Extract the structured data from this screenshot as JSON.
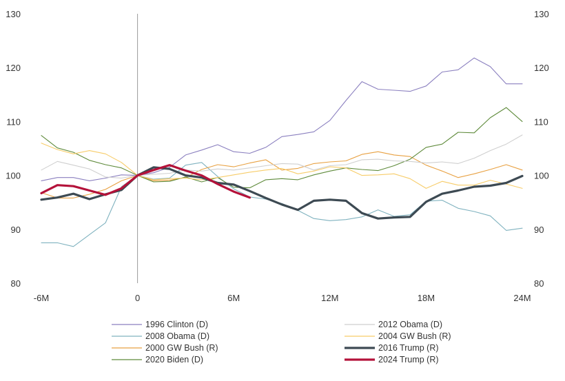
{
  "chart_data": {
    "type": "line",
    "title": "",
    "xlabel": "",
    "ylabel": "",
    "x_ticks": [
      {
        "value": -6,
        "label": "-6M"
      },
      {
        "value": 0,
        "label": "0"
      },
      {
        "value": 6,
        "label": "6M"
      },
      {
        "value": 12,
        "label": "12M"
      },
      {
        "value": 18,
        "label": "18M"
      },
      {
        "value": 24,
        "label": "24M"
      }
    ],
    "y_ticks": [
      80,
      90,
      100,
      110,
      120,
      130
    ],
    "xlim": [
      -6,
      24
    ],
    "ylim": [
      80,
      130
    ],
    "reference_line_x": 0,
    "legend_position": "bottom",
    "series": [
      {
        "name": "1996 Clinton (D)",
        "color": "#8a7fbf",
        "emphasis": false,
        "x": [
          -6,
          -5,
          -4,
          -3,
          -2,
          -1,
          0,
          1,
          2,
          3,
          4,
          5,
          6,
          7,
          8,
          9,
          10,
          11,
          12,
          13,
          14,
          15,
          16,
          17,
          18,
          19,
          20,
          21,
          22,
          23,
          24
        ],
        "y": [
          99,
          99.6,
          99.6,
          99,
          99.5,
          100.1,
          100,
          100.5,
          101.5,
          103.8,
          104.7,
          105.7,
          104.4,
          104.1,
          105.2,
          107.2,
          107.6,
          108.1,
          110.2,
          113.9,
          117.4,
          116.0,
          115.8,
          115.6,
          116.6,
          119.2,
          119.6,
          121.8,
          120.2,
          117,
          117
        ]
      },
      {
        "name": "2008 Obama (D)",
        "color": "#7fb2bf",
        "emphasis": false,
        "x": [
          -6,
          -5,
          -4,
          -3,
          -2,
          -1,
          0,
          1,
          2,
          3,
          4,
          5,
          6,
          7,
          8,
          9,
          10,
          11,
          12,
          13,
          14,
          15,
          16,
          17,
          18,
          19,
          20,
          21,
          22,
          23,
          24
        ],
        "y": [
          87.5,
          87.5,
          86.8,
          89.0,
          91.2,
          97.9,
          100,
          99.3,
          99.5,
          101.9,
          102.4,
          99.8,
          97.5,
          96.0,
          95.6,
          94.8,
          93.5,
          92.0,
          91.6,
          91.8,
          92.3,
          93.6,
          92.4,
          92.7,
          95.2,
          95.4,
          93.9,
          93.3,
          92.5,
          89.8,
          90.2
        ]
      },
      {
        "name": "2000 GW Bush (R)",
        "color": "#e8a040",
        "emphasis": false,
        "x": [
          -6,
          -5,
          -4,
          -3,
          -2,
          -1,
          0,
          1,
          2,
          3,
          4,
          5,
          6,
          7,
          8,
          9,
          10,
          11,
          12,
          13,
          14,
          15,
          16,
          17,
          18,
          19,
          20,
          21,
          22,
          23,
          24
        ],
        "y": [
          96.8,
          95.8,
          95.8,
          96.5,
          97.4,
          99.0,
          100,
          99.0,
          99.1,
          99.6,
          101.1,
          102.0,
          101.6,
          102.3,
          102.9,
          101.0,
          101.3,
          102.2,
          102.5,
          102.7,
          103.9,
          104.4,
          103.8,
          103.5,
          101.9,
          100.8,
          99.6,
          100.3,
          101.1,
          102.0,
          101.0
        ]
      },
      {
        "name": "2020 Biden (D)",
        "color": "#5e8a3a",
        "emphasis": false,
        "x": [
          -6,
          -5,
          -4,
          -3,
          -2,
          -1,
          0,
          1,
          2,
          3,
          4,
          5,
          6,
          7,
          8,
          9,
          10,
          11,
          12,
          13,
          14,
          15,
          16,
          17,
          18,
          19,
          20,
          21,
          22,
          23,
          24
        ],
        "y": [
          107.4,
          105.1,
          104.3,
          102.8,
          102.0,
          101.4,
          100,
          98.8,
          98.9,
          99.7,
          98.8,
          99.6,
          97.8,
          97.7,
          99.2,
          99.4,
          99.2,
          100.1,
          100.8,
          101.4,
          101.1,
          100.9,
          101.8,
          103.0,
          105.2,
          105.8,
          108.0,
          107.9,
          110.7,
          112.6,
          110.0
        ]
      },
      {
        "name": "2012 Obama (D)",
        "color": "#cfcfcf",
        "emphasis": false,
        "x": [
          -6,
          -5,
          -4,
          -3,
          -2,
          -1,
          0,
          1,
          2,
          3,
          4,
          5,
          6,
          7,
          8,
          9,
          10,
          11,
          12,
          13,
          14,
          15,
          16,
          17,
          18,
          19,
          20,
          21,
          22,
          23,
          24
        ],
        "y": [
          101.0,
          102.6,
          101.9,
          101.2,
          99.7,
          99.5,
          100,
          100.2,
          100.4,
          101.0,
          100.8,
          101.2,
          101.0,
          101.4,
          101.8,
          102.2,
          102.1,
          101.0,
          101.8,
          102.0,
          102.9,
          103.0,
          102.7,
          102.6,
          102.3,
          102.5,
          102.2,
          103.2,
          104.6,
          105.8,
          107.5
        ]
      },
      {
        "name": "2004 GW Bush (R)",
        "color": "#f7cc68",
        "emphasis": false,
        "x": [
          -6,
          -5,
          -4,
          -3,
          -2,
          -1,
          0,
          1,
          2,
          3,
          4,
          5,
          6,
          7,
          8,
          9,
          10,
          11,
          12,
          13,
          14,
          15,
          16,
          17,
          18,
          19,
          20,
          21,
          22,
          23,
          24
        ],
        "y": [
          106.0,
          104.8,
          104.0,
          104.6,
          104.0,
          102.4,
          100,
          99.2,
          99.4,
          99.5,
          99.2,
          99.6,
          100.1,
          100.6,
          101.0,
          101.3,
          100.3,
          100.8,
          101.6,
          101.4,
          100.0,
          100.1,
          100.3,
          99.4,
          97.6,
          98.9,
          98.2,
          98.2,
          99.1,
          98.4,
          97.6
        ]
      },
      {
        "name": "2016 Trump (R)",
        "color": "#3d4a53",
        "emphasis": true,
        "x": [
          -6,
          -5,
          -4,
          -3,
          -2,
          -1,
          0,
          1,
          2,
          3,
          4,
          5,
          6,
          7,
          8,
          9,
          10,
          11,
          12,
          13,
          14,
          15,
          16,
          17,
          18,
          19,
          20,
          21,
          22,
          23,
          24
        ],
        "y": [
          95.5,
          95.9,
          96.6,
          95.6,
          96.5,
          97.3,
          100,
          101.5,
          101.2,
          100,
          99.6,
          98.6,
          98.3,
          97.1,
          95.8,
          94.6,
          93.6,
          95.3,
          95.5,
          95.3,
          93.0,
          92.0,
          92.2,
          92.3,
          95.1,
          96.6,
          97.2,
          97.9,
          98.1,
          98.6,
          99.9
        ]
      },
      {
        "name": "2024 Trump (R)",
        "color": "#b4123a",
        "emphasis": true,
        "x": [
          -6,
          -5,
          -4,
          -3,
          -2,
          -1,
          0,
          1,
          2,
          3,
          4,
          5,
          6,
          7
        ],
        "y": [
          96.7,
          98.2,
          98.0,
          97.2,
          96.4,
          97.6,
          100,
          101.0,
          101.9,
          100.9,
          100.0,
          98.4,
          97.0,
          95.9
        ]
      }
    ],
    "legend_order": [
      "1996 Clinton (D)",
      "2012 Obama (D)",
      "2008 Obama (D)",
      "2004 GW Bush (R)",
      "2000 GW Bush (R)",
      "2016 Trump (R)",
      "2020 Biden (D)",
      "2024 Trump (R)"
    ]
  }
}
